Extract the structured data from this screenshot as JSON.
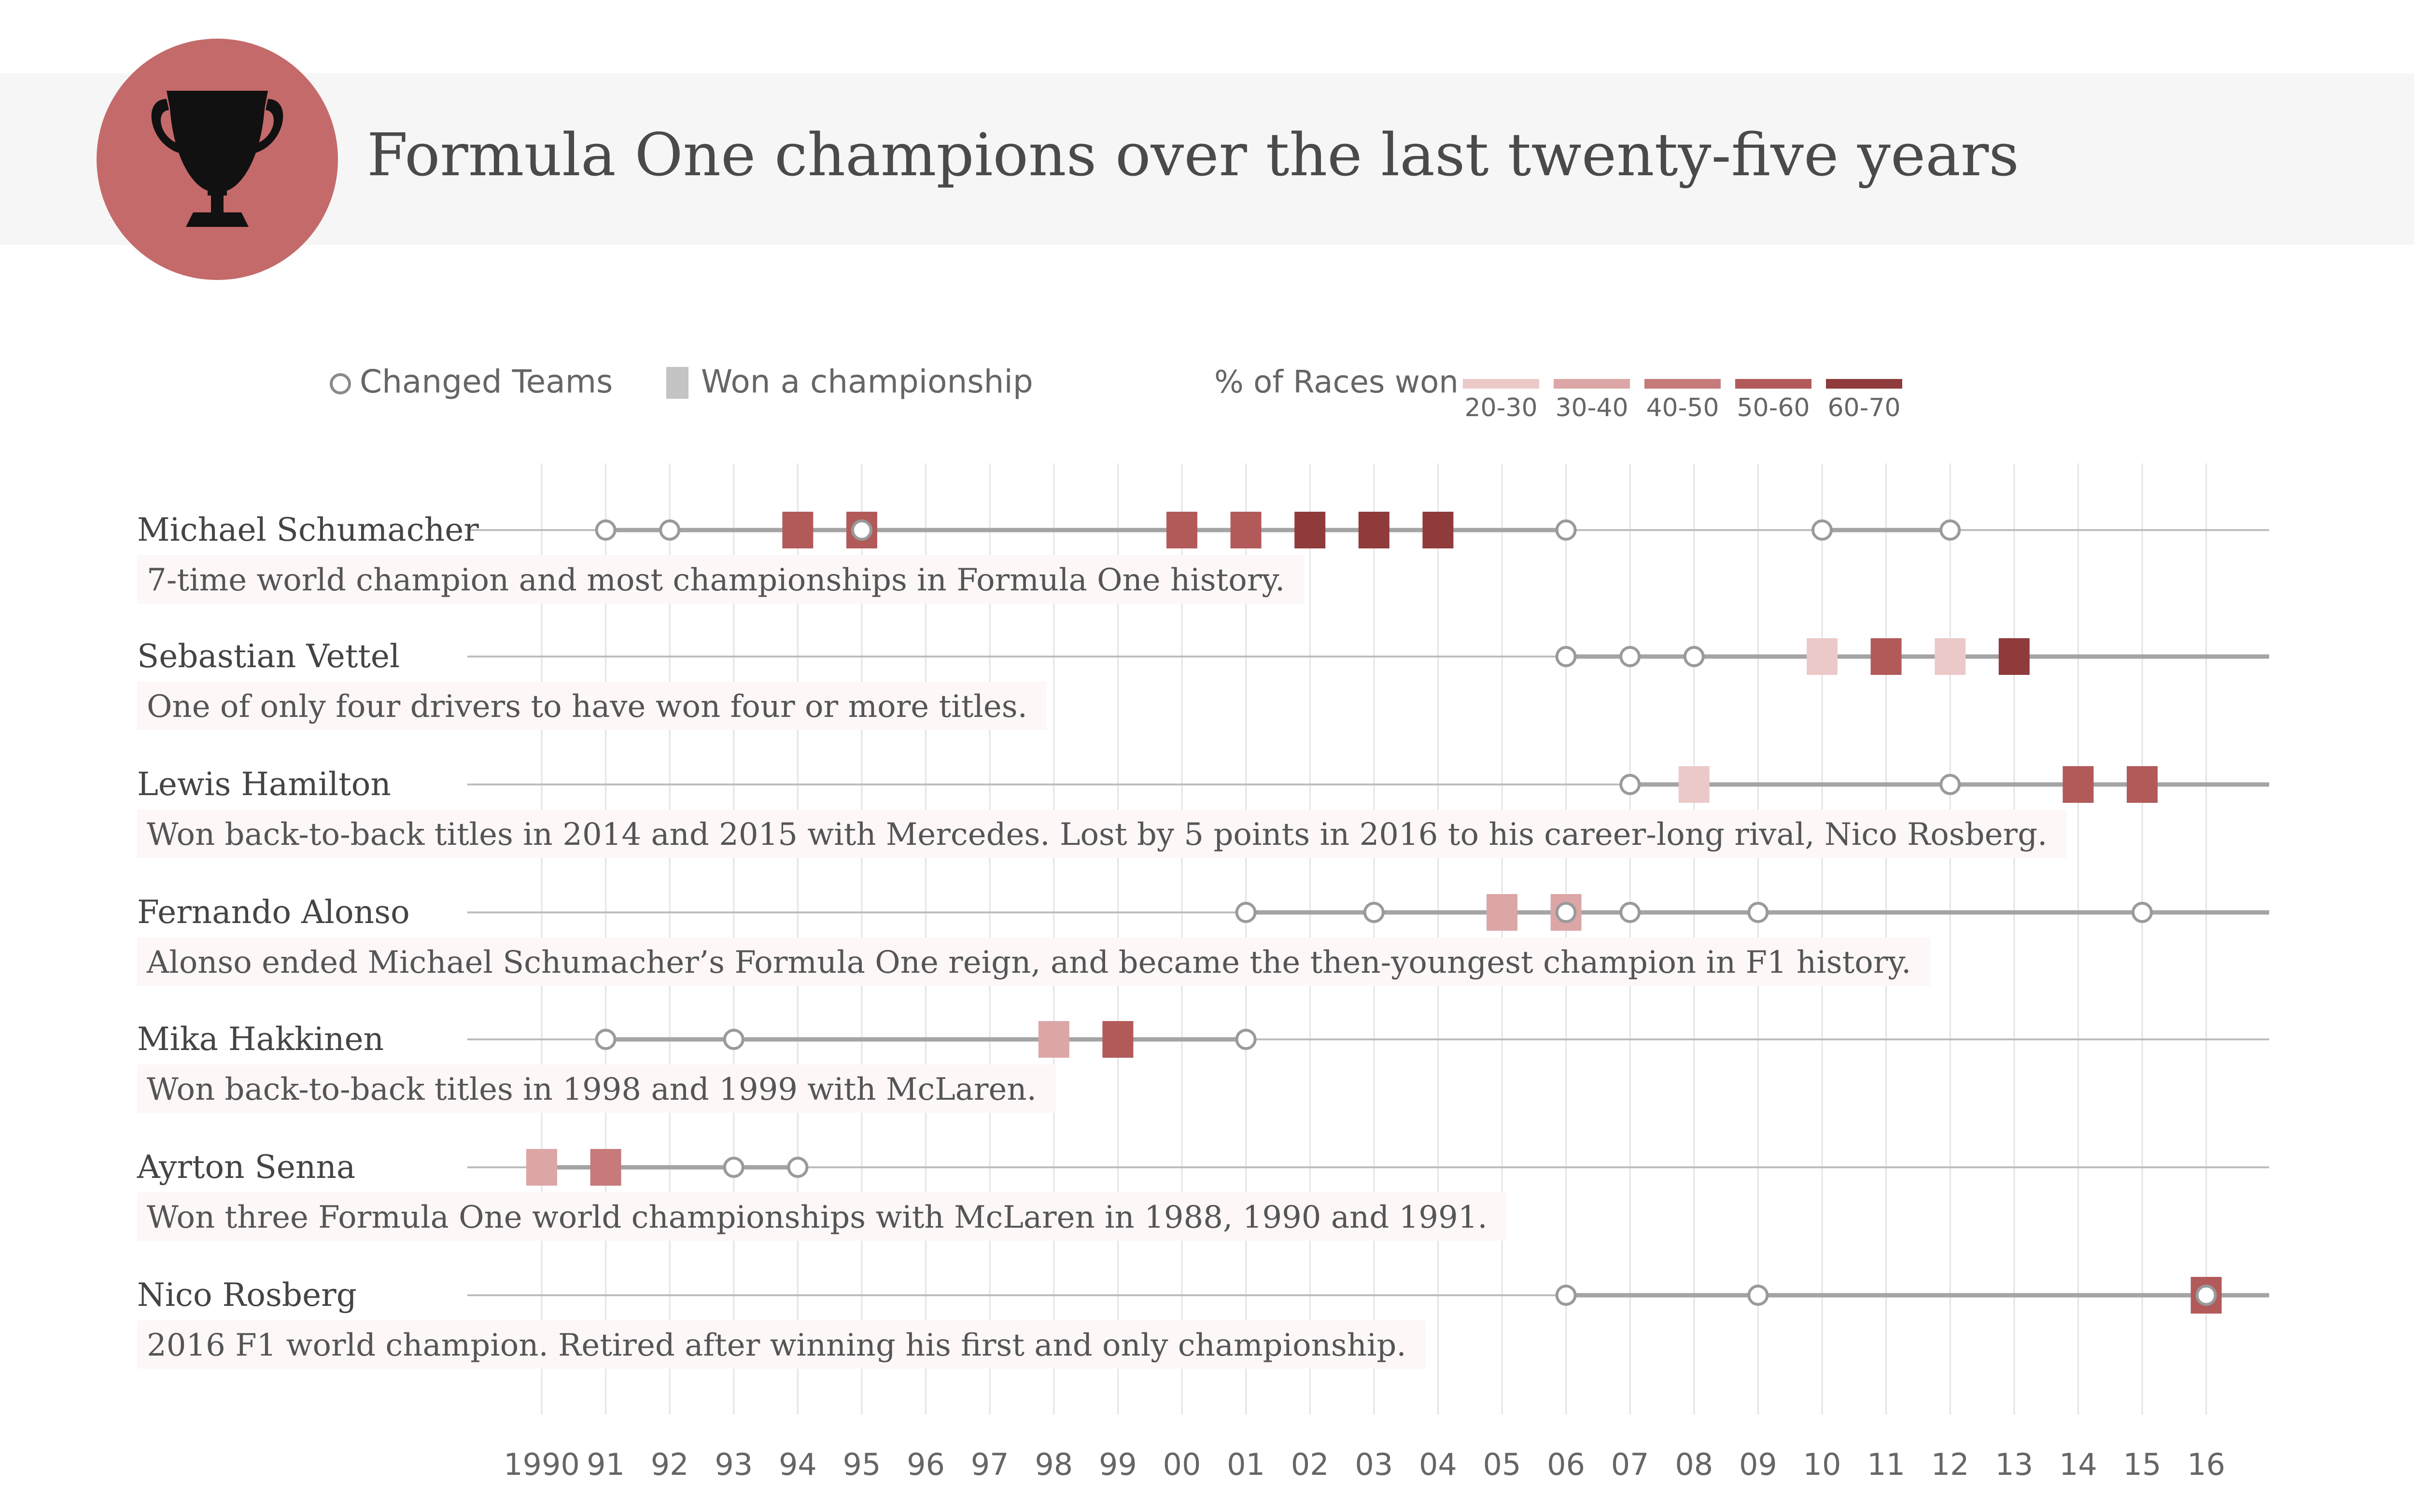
{
  "header": {
    "title": "Formula One champions over the last twenty-five years",
    "icon": "trophy-icon",
    "badge_color": "#c46a6a"
  },
  "legend": {
    "changed_teams": "Changed Teams",
    "won_championship": "Won a championship",
    "pct_label": "% of Races won",
    "bins": [
      {
        "label": "20-30",
        "color": "#ecc9c9"
      },
      {
        "label": "30-40",
        "color": "#dca6a6"
      },
      {
        "label": "40-50",
        "color": "#c67a7a"
      },
      {
        "label": "50-60",
        "color": "#b25a5a"
      },
      {
        "label": "60-70",
        "color": "#8f3b3b"
      }
    ]
  },
  "chart_data": {
    "type": "timeline",
    "x_ticks": [
      "1990",
      "91",
      "92",
      "93",
      "94",
      "95",
      "96",
      "97",
      "98",
      "99",
      "00",
      "01",
      "02",
      "03",
      "04",
      "05",
      "06",
      "07",
      "08",
      "09",
      "10",
      "11",
      "12",
      "13",
      "14",
      "15",
      "16"
    ],
    "x_range": [
      1990,
      2016
    ],
    "drivers": [
      {
        "name": "Michael Schumacher",
        "description": "7-time world champion and most championships in Formula One history.",
        "career_spans": [
          [
            1991,
            2006
          ],
          [
            2010,
            2012
          ]
        ],
        "team_changes": [
          1991,
          1992,
          1995,
          2006,
          2010,
          2012
        ],
        "championships": [
          {
            "year": 1994,
            "bin": 3
          },
          {
            "year": 1995,
            "bin": 3
          },
          {
            "year": 2000,
            "bin": 3
          },
          {
            "year": 2001,
            "bin": 3
          },
          {
            "year": 2002,
            "bin": 4
          },
          {
            "year": 2003,
            "bin": 4
          },
          {
            "year": 2004,
            "bin": 4
          }
        ]
      },
      {
        "name": "Sebastian Vettel",
        "description": "One of only four drivers to have won four or more titles.",
        "career_spans": [
          [
            2006,
            2016
          ]
        ],
        "team_changes": [
          2006,
          2007,
          2008
        ],
        "championships": [
          {
            "year": 2010,
            "bin": 0
          },
          {
            "year": 2011,
            "bin": 3
          },
          {
            "year": 2012,
            "bin": 0
          },
          {
            "year": 2013,
            "bin": 4
          }
        ]
      },
      {
        "name": "Lewis Hamilton",
        "description": "Won back-to-back titles in 2014 and 2015 with Mercedes. Lost by 5 points in 2016 to his career-long rival, Nico Rosberg.",
        "career_spans": [
          [
            2007,
            2016
          ]
        ],
        "team_changes": [
          2007,
          2012
        ],
        "championships": [
          {
            "year": 2008,
            "bin": 0
          },
          {
            "year": 2014,
            "bin": 3
          },
          {
            "year": 2015,
            "bin": 3
          }
        ]
      },
      {
        "name": "Fernando Alonso",
        "description": "Alonso ended Michael Schumacher’s Formula One reign, and became the then-youngest champion in F1 history.",
        "career_spans": [
          [
            2001,
            2016
          ]
        ],
        "team_changes": [
          2001,
          2003,
          2006,
          2007,
          2009,
          2015
        ],
        "championships": [
          {
            "year": 2005,
            "bin": 1
          },
          {
            "year": 2006,
            "bin": 1
          }
        ]
      },
      {
        "name": "Mika Hakkinen",
        "description": "Won back-to-back titles in 1998 and 1999 with McLaren.",
        "career_spans": [
          [
            1991,
            2001
          ]
        ],
        "team_changes": [
          1991,
          1993,
          2001
        ],
        "championships": [
          {
            "year": 1998,
            "bin": 1
          },
          {
            "year": 1999,
            "bin": 3
          }
        ]
      },
      {
        "name": "Ayrton Senna",
        "description": "Won three Formula One world championships with McLaren in 1988, 1990 and 1991.",
        "career_spans": [
          [
            1990,
            1994
          ]
        ],
        "team_changes": [
          1993,
          1994
        ],
        "championships": [
          {
            "year": 1990,
            "bin": 1
          },
          {
            "year": 1991,
            "bin": 2
          }
        ]
      },
      {
        "name": "Nico Rosberg",
        "description": "2016 F1 world champion. Retired after winning his first and only championship.",
        "career_spans": [
          [
            2006,
            2016
          ]
        ],
        "team_changes": [
          2006,
          2009,
          2016
        ],
        "championships": [
          {
            "year": 2016,
            "bin": 3
          }
        ]
      }
    ]
  }
}
